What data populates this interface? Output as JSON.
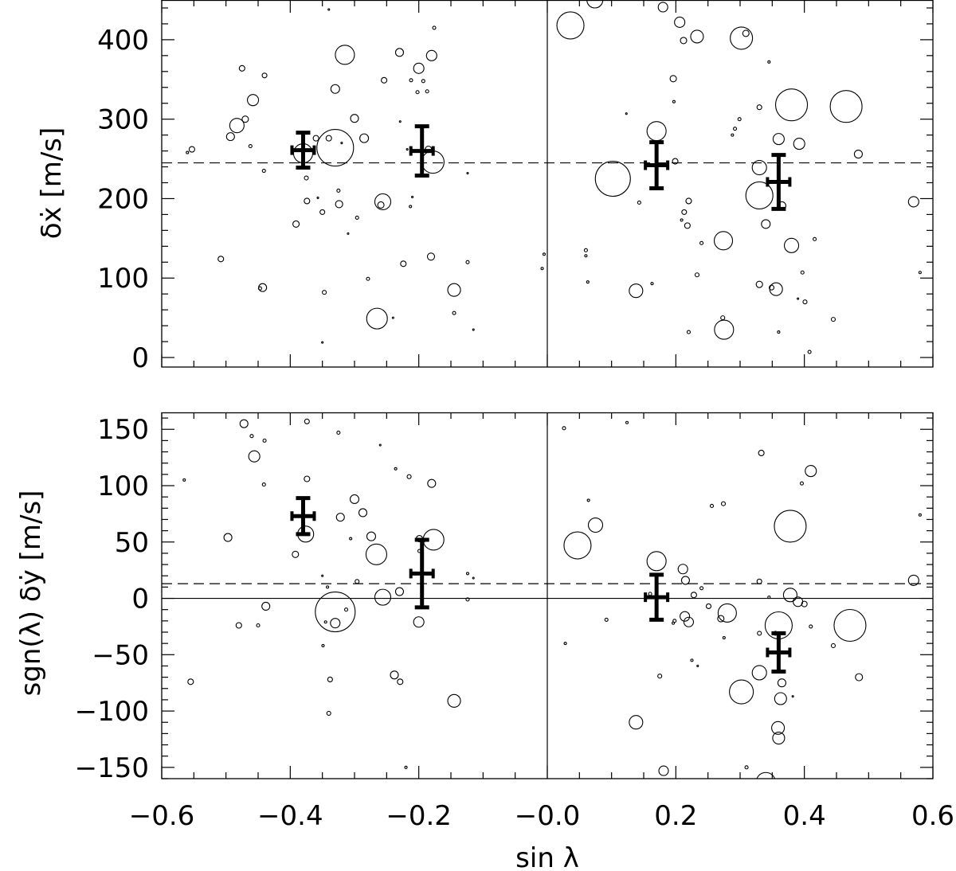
{
  "chart_data": [
    {
      "type": "scatter",
      "panel": "top",
      "ylabel": "δẋ [m/s]",
      "xlabel": "",
      "xlim": [
        -0.6,
        0.6
      ],
      "ylim": [
        -12,
        450
      ],
      "yticks": [
        0,
        100,
        200,
        300,
        400
      ],
      "ytick_labels": [
        "0",
        "100",
        "200",
        "300",
        "400"
      ],
      "reference_lines": {
        "horizontal_dashed": 245,
        "vertical_solid": 0.0
      },
      "binned_means": [
        {
          "x": -0.38,
          "y": 261,
          "yerr": 22
        },
        {
          "x": -0.195,
          "y": 260,
          "yerr": 31
        },
        {
          "x": 0.17,
          "y": 242,
          "yerr": 29
        },
        {
          "x": 0.36,
          "y": 221,
          "yerr": 34
        }
      ],
      "points": [
        [
          -0.56,
          258,
          1.5
        ],
        [
          -0.553,
          262,
          3.5
        ],
        [
          -0.508,
          124,
          3.5
        ],
        [
          -0.493,
          278,
          5
        ],
        [
          -0.483,
          292,
          9
        ],
        [
          -0.475,
          364,
          3.5
        ],
        [
          -0.47,
          300,
          4
        ],
        [
          -0.462,
          266,
          2
        ],
        [
          -0.458,
          324,
          7
        ],
        [
          -0.447,
          87,
          2
        ],
        [
          -0.443,
          88,
          5
        ],
        [
          -0.44,
          355,
          3
        ],
        [
          -0.441,
          235,
          2
        ],
        [
          -0.391,
          168,
          4
        ],
        [
          -0.38,
          257,
          12
        ],
        [
          -0.375,
          226,
          2.5
        ],
        [
          -0.374,
          197,
          3.5
        ],
        [
          -0.36,
          276,
          3.5
        ],
        [
          -0.357,
          201,
          1
        ],
        [
          -0.35,
          19,
          1
        ],
        [
          -0.35,
          183,
          3
        ],
        [
          -0.347,
          82,
          2.5
        ],
        [
          -0.34,
          276,
          3.5
        ],
        [
          -0.34,
          438,
          1
        ],
        [
          -0.33,
          264,
          23
        ],
        [
          -0.33,
          338,
          5.5
        ],
        [
          -0.325,
          210,
          2
        ],
        [
          -0.324,
          193,
          4.5
        ],
        [
          -0.32,
          270,
          1
        ],
        [
          -0.315,
          381,
          12
        ],
        [
          -0.31,
          156,
          1
        ],
        [
          -0.3,
          301,
          5
        ],
        [
          -0.296,
          176,
          2
        ],
        [
          -0.285,
          276,
          5.5
        ],
        [
          -0.279,
          99,
          2
        ],
        [
          -0.265,
          49,
          13
        ],
        [
          -0.259,
          192,
          4
        ],
        [
          -0.256,
          196,
          10
        ],
        [
          -0.254,
          349,
          3.5
        ],
        [
          -0.24,
          50,
          1
        ],
        [
          -0.229,
          297,
          1
        ],
        [
          -0.23,
          384,
          5
        ],
        [
          -0.224,
          118,
          3.5
        ],
        [
          -0.218,
          262,
          1
        ],
        [
          -0.213,
          190,
          1.5
        ],
        [
          -0.212,
          349,
          2
        ],
        [
          -0.21,
          202,
          1
        ],
        [
          -0.202,
          334,
          2
        ],
        [
          -0.2,
          364,
          6.5
        ],
        [
          -0.193,
          348,
          2
        ],
        [
          -0.187,
          335,
          2
        ],
        [
          -0.185,
          262,
          4
        ],
        [
          -0.18,
          380,
          6.5
        ],
        [
          -0.181,
          127,
          4.5
        ],
        [
          -0.178,
          246,
          14
        ],
        [
          -0.176,
          415,
          2
        ],
        [
          -0.145,
          85,
          8
        ],
        [
          -0.145,
          56,
          2
        ],
        [
          -0.124,
          232,
          1
        ],
        [
          -0.124,
          120,
          2
        ],
        [
          -0.115,
          35,
          1
        ],
        [
          -0.008,
          112,
          1.5
        ],
        [
          -0.005,
          130,
          1.5
        ],
        [
          0.036,
          418,
          17
        ],
        [
          0.06,
          128,
          1.5
        ],
        [
          0.06,
          135,
          2
        ],
        [
          0.063,
          95,
          1.5
        ],
        [
          0.074,
          450,
          10
        ],
        [
          0.102,
          225,
          22
        ],
        [
          0.123,
          307,
          1
        ],
        [
          0.138,
          84,
          8.5
        ],
        [
          0.143,
          195,
          2
        ],
        [
          0.163,
          93,
          1.5
        ],
        [
          0.17,
          285,
          12
        ],
        [
          0.18,
          441,
          6
        ],
        [
          0.196,
          351,
          4
        ],
        [
          0.197,
          322,
          1.5
        ],
        [
          0.199,
          247,
          3.5
        ],
        [
          0.206,
          422,
          6.5
        ],
        [
          0.209,
          173,
          1.5
        ],
        [
          0.212,
          399,
          4
        ],
        [
          0.213,
          183,
          3
        ],
        [
          0.218,
          166,
          3.5
        ],
        [
          0.22,
          32,
          2
        ],
        [
          0.22,
          197,
          3.5
        ],
        [
          0.233,
          404,
          8
        ],
        [
          0.233,
          104,
          2.5
        ],
        [
          0.24,
          144,
          2
        ],
        [
          0.274,
          147,
          11.5
        ],
        [
          0.273,
          50,
          2.5
        ],
        [
          0.275,
          35,
          12
        ],
        [
          0.288,
          280,
          1.5
        ],
        [
          0.292,
          288,
          2
        ],
        [
          0.299,
          300,
          2
        ],
        [
          0.302,
          402,
          14
        ],
        [
          0.309,
          408,
          4
        ],
        [
          0.33,
          92,
          4
        ],
        [
          0.33,
          239,
          9
        ],
        [
          0.33,
          315,
          3
        ],
        [
          0.33,
          204,
          17
        ],
        [
          0.34,
          168,
          5.5
        ],
        [
          0.345,
          372,
          1.5
        ],
        [
          0.349,
          88,
          3
        ],
        [
          0.356,
          86,
          8
        ],
        [
          0.36,
          275,
          7
        ],
        [
          0.36,
          32,
          1.5
        ],
        [
          0.365,
          191,
          5
        ],
        [
          0.38,
          318,
          20
        ],
        [
          0.38,
          141,
          9
        ],
        [
          0.39,
          74,
          1
        ],
        [
          0.392,
          269,
          7
        ],
        [
          0.397,
          107,
          2
        ],
        [
          0.401,
          70,
          2.5
        ],
        [
          0.408,
          7,
          2
        ],
        [
          0.416,
          149,
          2
        ],
        [
          0.445,
          48,
          2.5
        ],
        [
          0.465,
          316,
          20
        ],
        [
          0.484,
          256,
          5
        ],
        [
          0.57,
          196,
          6.5
        ],
        [
          0.58,
          107,
          1.5
        ]
      ]
    },
    {
      "type": "scatter",
      "panel": "bottom",
      "ylabel": "sgn(λ) δẏ [m/s]",
      "xlabel": "sin λ",
      "xlim": [
        -0.6,
        0.6
      ],
      "ylim": [
        -160,
        165
      ],
      "xticks": [
        -0.6,
        -0.4,
        -0.2,
        0.0,
        0.2,
        0.4,
        0.6
      ],
      "xtick_labels": [
        "−0.6",
        "−0.4",
        "−0.2",
        "−0.0",
        "0.2",
        "0.4",
        "0.6"
      ],
      "yticks": [
        -150,
        -100,
        -50,
        0,
        50,
        100,
        150
      ],
      "ytick_labels": [
        "−150",
        "−100",
        "−50",
        "0",
        "50",
        "100",
        "150"
      ],
      "reference_lines": {
        "horizontal_dashed": 13,
        "horizontal_solid": 0,
        "vertical_solid": 0.0
      },
      "binned_means": [
        {
          "x": -0.38,
          "y": 73,
          "yerr": 16
        },
        {
          "x": -0.195,
          "y": 22,
          "yerr": 30
        },
        {
          "x": 0.17,
          "y": 1,
          "yerr": 20
        },
        {
          "x": 0.36,
          "y": -48,
          "yerr": 17
        }
      ],
      "points": [
        [
          -0.565,
          105,
          1.5
        ],
        [
          -0.555,
          -74,
          3.5
        ],
        [
          -0.497,
          54,
          5
        ],
        [
          -0.48,
          -24,
          3.5
        ],
        [
          -0.472,
          155,
          5
        ],
        [
          -0.46,
          144,
          2
        ],
        [
          -0.456,
          126,
          7
        ],
        [
          -0.45,
          -24,
          2
        ],
        [
          -0.44,
          140,
          2
        ],
        [
          -0.441,
          101,
          2
        ],
        [
          -0.438,
          -7,
          5
        ],
        [
          -0.392,
          39,
          4
        ],
        [
          -0.376,
          57,
          10
        ],
        [
          -0.374,
          106,
          3.5
        ],
        [
          -0.374,
          157,
          3
        ],
        [
          -0.35,
          20,
          1
        ],
        [
          -0.349,
          -42,
          1.5
        ],
        [
          -0.345,
          -21,
          1.5
        ],
        [
          -0.342,
          10,
          1.5
        ],
        [
          -0.338,
          -72,
          3
        ],
        [
          -0.34,
          -102,
          2.5
        ],
        [
          -0.33,
          -12,
          25
        ],
        [
          -0.33,
          -22,
          6
        ],
        [
          -0.325,
          147,
          2
        ],
        [
          -0.322,
          72,
          5
        ],
        [
          -0.313,
          -10,
          2
        ],
        [
          -0.306,
          53,
          1.5
        ],
        [
          -0.3,
          88,
          5.5
        ],
        [
          -0.296,
          15,
          2.5
        ],
        [
          -0.287,
          76,
          5
        ],
        [
          -0.274,
          55,
          5.5
        ],
        [
          -0.266,
          39,
          13
        ],
        [
          -0.256,
          1,
          10
        ],
        [
          -0.26,
          136,
          1
        ],
        [
          -0.238,
          -68,
          5
        ],
        [
          -0.236,
          115,
          1.5
        ],
        [
          -0.23,
          6,
          5
        ],
        [
          -0.229,
          -74,
          3.5
        ],
        [
          -0.22,
          -150,
          1.5
        ],
        [
          -0.215,
          108,
          2.5
        ],
        [
          -0.199,
          53,
          4
        ],
        [
          -0.199,
          42,
          2
        ],
        [
          -0.2,
          -21,
          6.5
        ],
        [
          -0.193,
          51,
          2
        ],
        [
          -0.18,
          102,
          5
        ],
        [
          -0.177,
          52,
          13
        ],
        [
          -0.145,
          -91,
          8
        ],
        [
          -0.124,
          22,
          1.5
        ],
        [
          -0.124,
          -1,
          2
        ],
        [
          -0.115,
          18,
          1
        ],
        [
          0.026,
          151,
          2
        ],
        [
          0.028,
          -40,
          1.5
        ],
        [
          0.047,
          47,
          17
        ],
        [
          0.064,
          87,
          1.5
        ],
        [
          0.075,
          65,
          9
        ],
        [
          0.092,
          -19,
          2
        ],
        [
          0.124,
          156,
          1.5
        ],
        [
          0.138,
          -110,
          8.5
        ],
        [
          0.16,
          4,
          2
        ],
        [
          0.17,
          33,
          12
        ],
        [
          0.175,
          -69,
          2.5
        ],
        [
          0.181,
          -153,
          6
        ],
        [
          0.196,
          -22,
          1.5
        ],
        [
          0.198,
          -20,
          2
        ],
        [
          0.211,
          26,
          6
        ],
        [
          0.214,
          -16,
          6
        ],
        [
          0.215,
          16,
          5
        ],
        [
          0.22,
          -21,
          6
        ],
        [
          0.225,
          -55,
          1.5
        ],
        [
          0.228,
          3,
          3.5
        ],
        [
          0.234,
          -60,
          1
        ],
        [
          0.24,
          9,
          2
        ],
        [
          0.251,
          -7,
          3
        ],
        [
          0.256,
          82,
          2
        ],
        [
          0.27,
          -18,
          4
        ],
        [
          0.274,
          84,
          2.5
        ],
        [
          0.275,
          -35,
          1.5
        ],
        [
          0.28,
          -13,
          11.5
        ],
        [
          0.302,
          -83,
          15
        ],
        [
          0.31,
          -150,
          2
        ],
        [
          0.33,
          -66,
          9
        ],
        [
          0.33,
          -31,
          2.5
        ],
        [
          0.33,
          15,
          3
        ],
        [
          0.333,
          129,
          3.5
        ],
        [
          0.34,
          -163,
          12
        ],
        [
          0.345,
          1,
          1.5
        ],
        [
          0.355,
          -31,
          2.5
        ],
        [
          0.359,
          -115,
          8
        ],
        [
          0.36,
          -24,
          17
        ],
        [
          0.36,
          -124,
          7.5
        ],
        [
          0.363,
          -89,
          7.5
        ],
        [
          0.365,
          -75,
          5
        ],
        [
          0.378,
          64,
          20
        ],
        [
          0.378,
          3,
          8.5
        ],
        [
          0.382,
          -87,
          1
        ],
        [
          0.39,
          -3,
          6
        ],
        [
          0.396,
          102,
          2
        ],
        [
          0.4,
          -5,
          3.5
        ],
        [
          0.41,
          -25,
          2
        ],
        [
          0.41,
          113,
          7
        ],
        [
          0.445,
          -42,
          2.5
        ],
        [
          0.471,
          -24,
          20
        ],
        [
          0.485,
          -70,
          4.5
        ],
        [
          0.57,
          16,
          6.5
        ],
        [
          0.58,
          74,
          1.5
        ]
      ]
    }
  ]
}
